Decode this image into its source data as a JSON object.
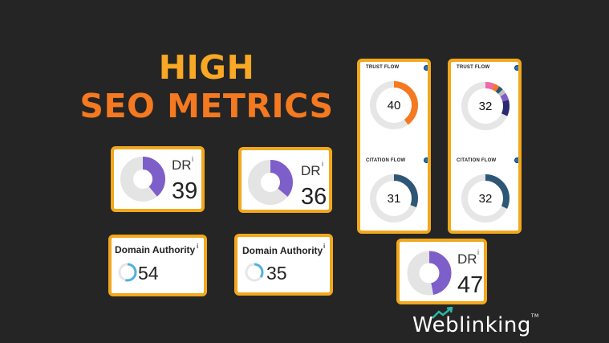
{
  "headline": {
    "line1": "HIGH",
    "line2": "SEO METRICS"
  },
  "dr_cards": [
    {
      "label": "DR",
      "info": "i",
      "value": "39"
    },
    {
      "label": "DR",
      "info": "i",
      "value": "36"
    },
    {
      "label": "DR",
      "info": "i",
      "value": "47"
    }
  ],
  "da_cards": [
    {
      "label": "Domain Authority",
      "info": "i",
      "value": "54"
    },
    {
      "label": "Domain Authority",
      "info": "i",
      "value": "35"
    }
  ],
  "flow_cards": [
    {
      "trust_label": "TRUST FLOW",
      "trust_value": "40",
      "citation_label": "CITATION FLOW",
      "citation_value": "31"
    },
    {
      "trust_label": "TRUST FLOW",
      "trust_value": "32",
      "citation_label": "CITATION FLOW",
      "citation_value": "32"
    }
  ],
  "logo": {
    "text": "Weblinking",
    "tm": "TM"
  },
  "colors": {
    "background": "#252525",
    "accent_yellow": "#f9a825",
    "accent_orange": "#f47920",
    "card_border": "#f2a81d",
    "dr_ring": "#7e5fc9",
    "da_ring": "#4fb1e3",
    "trust_ring": "#f47920",
    "citation_ring": "#2e5675",
    "logo_teal": "#2bb7a7"
  }
}
